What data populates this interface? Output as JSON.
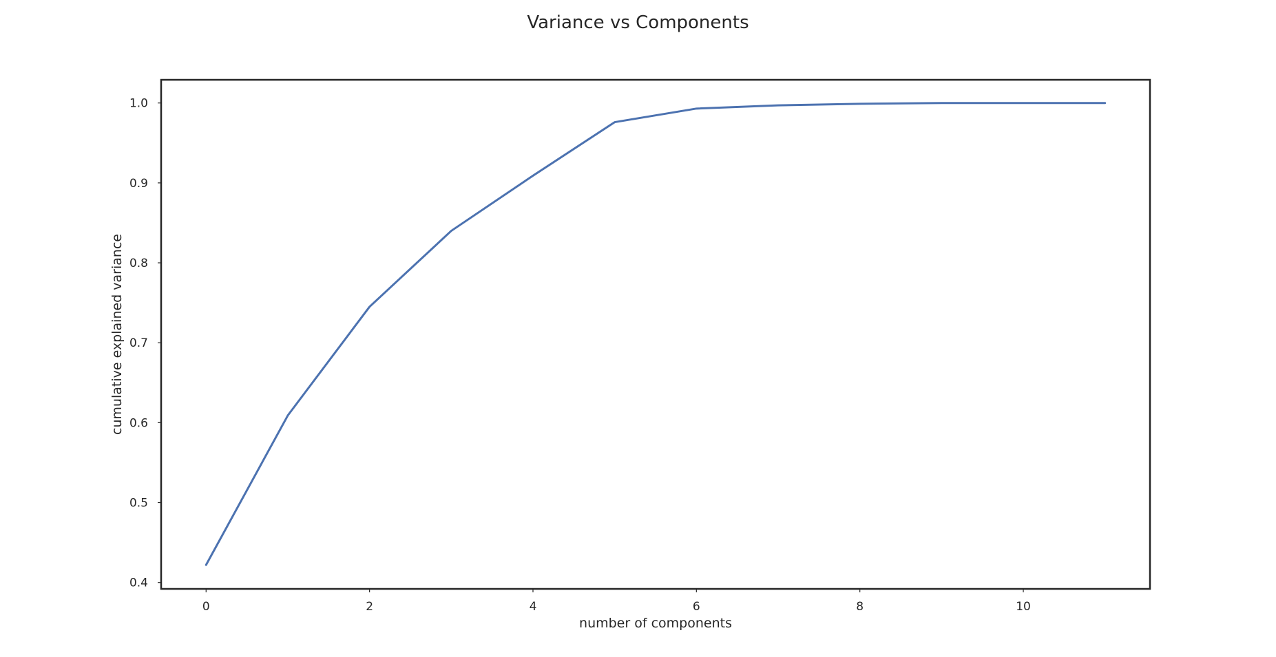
{
  "chart_data": {
    "type": "line",
    "title": "Variance vs Components",
    "xlabel": "number of components",
    "ylabel": "cumulative explained variance",
    "xlim": [
      -0.55,
      11.55
    ],
    "ylim": [
      0.392,
      1.029
    ],
    "xticks": [
      0,
      2,
      4,
      6,
      8,
      10
    ],
    "yticks": [
      0.4,
      0.5,
      0.6,
      0.7,
      0.8,
      0.9,
      1.0
    ],
    "xtick_labels": [
      "0",
      "2",
      "4",
      "6",
      "8",
      "10"
    ],
    "ytick_labels": [
      "0.4",
      "0.5",
      "0.6",
      "0.7",
      "0.8",
      "0.9",
      "1.0"
    ],
    "grid": false,
    "line_color": "#4c72b0",
    "x": [
      0,
      1,
      2,
      3,
      4,
      5,
      6,
      7,
      8,
      9,
      10,
      11
    ],
    "y": [
      0.422,
      0.609,
      0.745,
      0.84,
      0.909,
      0.976,
      0.993,
      0.997,
      0.999,
      1.0,
      1.0,
      1.0
    ]
  }
}
